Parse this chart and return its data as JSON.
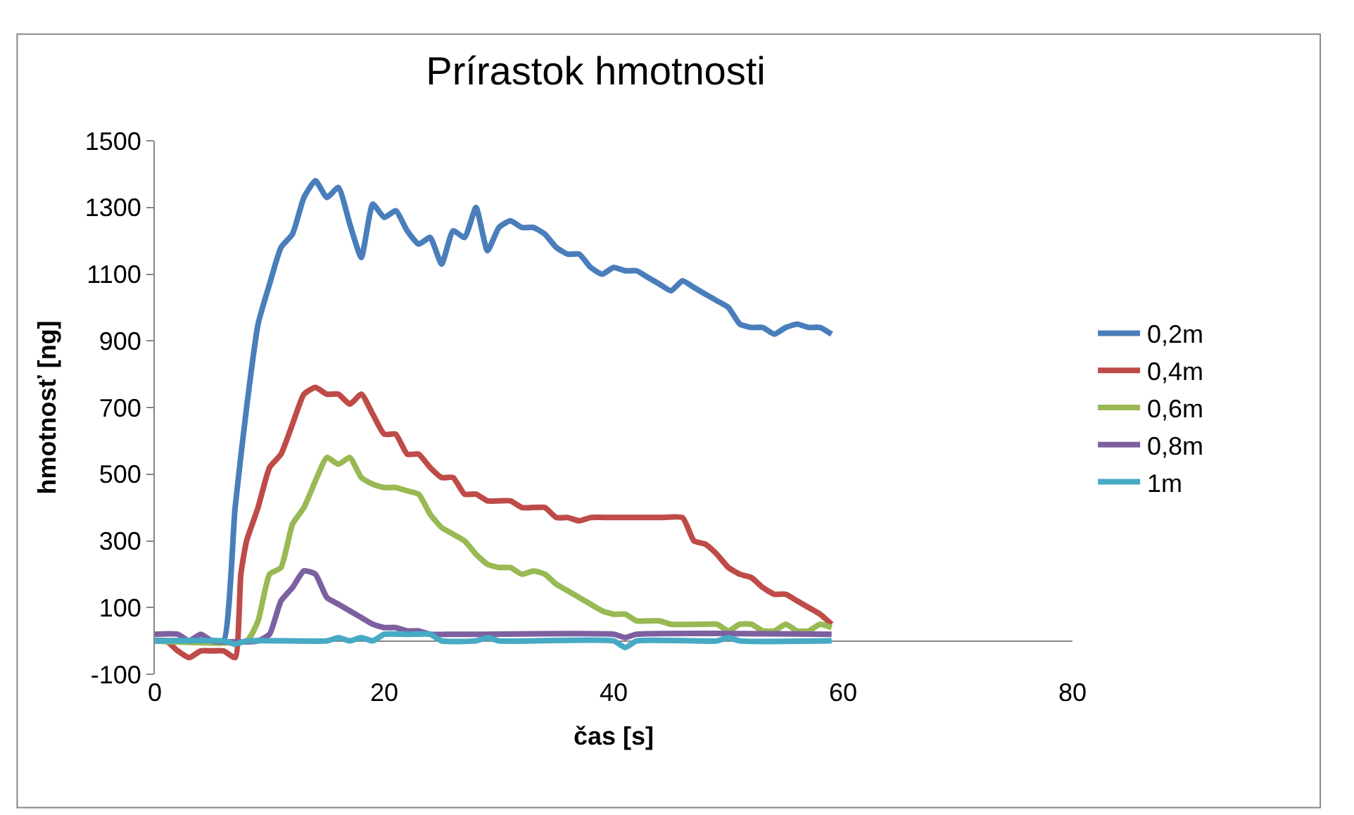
{
  "chart_data": {
    "type": "line",
    "title": "Prírastok hmotnosti",
    "xlabel": "čas [s]",
    "ylabel": "hmotnosť [ng]",
    "xlim": [
      0,
      80
    ],
    "xticks": [
      0,
      20,
      40,
      60,
      80
    ],
    "ylim": [
      -100,
      1500
    ],
    "yticks": [
      -100,
      100,
      300,
      500,
      700,
      900,
      1100,
      1300,
      1500
    ],
    "legend": "right",
    "marker": "none",
    "line_style": "solid",
    "series": [
      {
        "name": "0,2m",
        "color": "#4a7ebb",
        "x": [
          0,
          5,
          6,
          7,
          8,
          9,
          10,
          11,
          12,
          13,
          14,
          15,
          16,
          17,
          18,
          19,
          20,
          21,
          22,
          23,
          24,
          25,
          26,
          27,
          28,
          29,
          30,
          31,
          32,
          33,
          34,
          35,
          36,
          37,
          38,
          39,
          40,
          41,
          42,
          43,
          44,
          45,
          46,
          47,
          48,
          49,
          50,
          51,
          52,
          53,
          54,
          55,
          56,
          57,
          58,
          59
        ],
        "values": [
          0,
          0,
          0,
          400,
          700,
          950,
          1070,
          1180,
          1220,
          1330,
          1380,
          1330,
          1360,
          1250,
          1150,
          1310,
          1270,
          1290,
          1230,
          1190,
          1210,
          1130,
          1230,
          1210,
          1300,
          1170,
          1240,
          1260,
          1240,
          1240,
          1220,
          1180,
          1160,
          1160,
          1120,
          1100,
          1120,
          1110,
          1110,
          1090,
          1070,
          1050,
          1080,
          1060,
          1040,
          1020,
          1000,
          950,
          940,
          940,
          920,
          940,
          950,
          940,
          940,
          920
        ]
      },
      {
        "name": "0,4m",
        "color": "#be4b48",
        "x": [
          0,
          1,
          2,
          3,
          4,
          5,
          6,
          7,
          7.5,
          8,
          9,
          10,
          11,
          12,
          13,
          14,
          15,
          16,
          17,
          18,
          19,
          20,
          21,
          22,
          23,
          24,
          25,
          26,
          27,
          28,
          29,
          30,
          31,
          32,
          33,
          34,
          35,
          36,
          37,
          38,
          40,
          44,
          46,
          47,
          48,
          49,
          50,
          51,
          52,
          53,
          54,
          55,
          56,
          57,
          58,
          59
        ],
        "values": [
          0,
          0,
          -30,
          -50,
          -30,
          -30,
          -30,
          -50,
          200,
          300,
          400,
          520,
          560,
          650,
          740,
          760,
          740,
          740,
          710,
          740,
          680,
          620,
          620,
          560,
          560,
          520,
          490,
          490,
          440,
          440,
          420,
          420,
          420,
          400,
          400,
          400,
          370,
          370,
          360,
          370,
          370,
          370,
          370,
          300,
          290,
          260,
          220,
          200,
          190,
          160,
          140,
          140,
          120,
          100,
          80,
          50
        ]
      },
      {
        "name": "0,6m",
        "color": "#98b954",
        "x": [
          0,
          8,
          9,
          10,
          11,
          12,
          13,
          14,
          15,
          16,
          17,
          18,
          19,
          20,
          21,
          22,
          23,
          24,
          25,
          26,
          27,
          28,
          29,
          30,
          31,
          32,
          33,
          34,
          35,
          36,
          37,
          38,
          39,
          40,
          41,
          42,
          43,
          44,
          45,
          48,
          49,
          50,
          51,
          52,
          53,
          54,
          55,
          56,
          57,
          58,
          59
        ],
        "values": [
          0,
          0,
          60,
          200,
          220,
          350,
          400,
          480,
          550,
          530,
          550,
          490,
          470,
          460,
          460,
          450,
          440,
          380,
          340,
          320,
          300,
          260,
          230,
          220,
          220,
          200,
          210,
          200,
          170,
          150,
          130,
          110,
          90,
          80,
          80,
          60,
          60,
          60,
          50,
          50,
          50,
          30,
          50,
          50,
          30,
          30,
          50,
          30,
          30,
          50,
          40
        ]
      },
      {
        "name": "0,8m",
        "color": "#7d60a0",
        "x": [
          0,
          2,
          3,
          4,
          5,
          9,
          10,
          11,
          12,
          13,
          14,
          15,
          16,
          17,
          18,
          19,
          20,
          21,
          22,
          23,
          24,
          26,
          28,
          40,
          41,
          42,
          59
        ],
        "values": [
          20,
          20,
          0,
          20,
          0,
          0,
          20,
          120,
          160,
          210,
          200,
          130,
          110,
          90,
          70,
          50,
          40,
          40,
          30,
          30,
          20,
          20,
          20,
          20,
          10,
          20,
          20
        ]
      },
      {
        "name": "1m",
        "color": "#46aac5",
        "x": [
          0,
          6,
          7,
          8,
          15,
          16,
          17,
          18,
          19,
          20,
          22,
          24,
          25,
          28,
          29,
          30,
          40,
          41,
          42,
          49,
          50,
          51,
          59
        ],
        "values": [
          0,
          0,
          -10,
          0,
          0,
          10,
          0,
          10,
          0,
          20,
          20,
          20,
          0,
          0,
          10,
          0,
          0,
          -20,
          0,
          0,
          10,
          0,
          0
        ]
      }
    ]
  }
}
